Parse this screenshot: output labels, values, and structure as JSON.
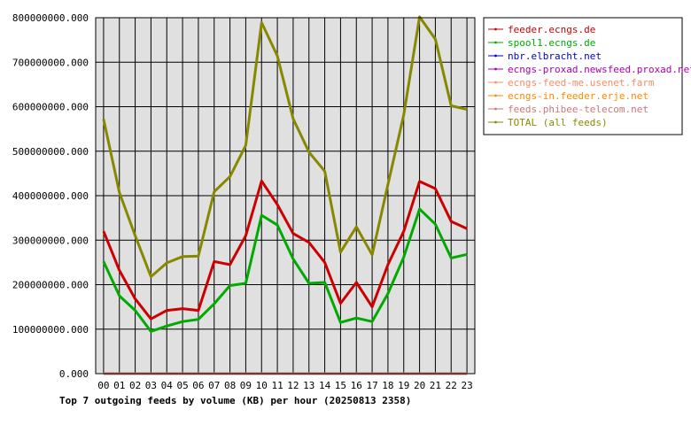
{
  "chart_data": {
    "type": "line",
    "title": "Top 7 outgoing feeds by volume (KB) per hour (20250813 2358)",
    "categories": [
      "00",
      "01",
      "02",
      "03",
      "04",
      "05",
      "06",
      "07",
      "08",
      "09",
      "10",
      "11",
      "12",
      "13",
      "14",
      "15",
      "16",
      "17",
      "18",
      "19",
      "20",
      "21",
      "22",
      "23"
    ],
    "ylim": [
      0,
      800000000
    ],
    "ytick_values": [
      0,
      100000000,
      200000000,
      300000000,
      400000000,
      500000000,
      600000000,
      700000000,
      800000000
    ],
    "ytick_labels": [
      "0.000",
      "100000000.000",
      "200000000.000",
      "300000000.000",
      "400000000.000",
      "500000000.000",
      "600000000.000",
      "700000000.000",
      "800000000.000"
    ],
    "grid": true,
    "legend_position": "right",
    "plot_background": "#e0e0e0",
    "series": [
      {
        "name": "feeder.ecngs.de",
        "color": "#cc0000",
        "values": [
          320000000,
          232000000,
          168000000,
          123000000,
          142000000,
          146000000,
          142000000,
          252000000,
          245000000,
          310000000,
          433000000,
          380000000,
          315000000,
          295000000,
          250000000,
          158000000,
          205000000,
          150000000,
          245000000,
          320000000,
          432000000,
          416000000,
          342000000,
          326000000
        ]
      },
      {
        "name": "spool1.ecngs.de",
        "color": "#00aa00",
        "values": [
          252000000,
          175000000,
          142000000,
          95000000,
          107000000,
          117000000,
          122000000,
          157000000,
          198000000,
          203000000,
          356000000,
          334000000,
          258000000,
          203000000,
          205000000,
          115000000,
          125000000,
          117000000,
          180000000,
          262000000,
          370000000,
          336000000,
          260000000,
          268000000
        ]
      },
      {
        "name": "nbr.elbracht.net",
        "color": "#0000cc",
        "values": [
          0,
          0,
          0,
          0,
          0,
          0,
          0,
          0,
          0,
          0,
          0,
          0,
          0,
          0,
          0,
          0,
          0,
          0,
          0,
          0,
          0,
          0,
          0,
          0
        ]
      },
      {
        "name": "ecngs-proxad.newsfeed.proxad.net",
        "color": "#aa00aa",
        "values": [
          0,
          0,
          0,
          0,
          0,
          0,
          0,
          0,
          0,
          0,
          0,
          0,
          0,
          0,
          0,
          0,
          0,
          0,
          0,
          0,
          0,
          0,
          0,
          0
        ]
      },
      {
        "name": "ecngs-feed-me.usenet.farm",
        "color": "#ff8866",
        "values": [
          0,
          0,
          0,
          0,
          0,
          0,
          0,
          0,
          0,
          0,
          0,
          0,
          0,
          0,
          0,
          0,
          0,
          0,
          0,
          0,
          0,
          0,
          0,
          0
        ]
      },
      {
        "name": "ecngs-in.feeder.erje.net",
        "color": "#ff8800",
        "values": [
          0,
          0,
          0,
          0,
          0,
          0,
          0,
          0,
          0,
          0,
          0,
          0,
          0,
          0,
          0,
          0,
          0,
          0,
          0,
          0,
          0,
          0,
          0,
          0
        ]
      },
      {
        "name": "feeds.phibee-telecom.net",
        "color": "#cc7777",
        "values": [
          0,
          0,
          0,
          0,
          0,
          0,
          0,
          0,
          0,
          0,
          0,
          0,
          0,
          0,
          0,
          0,
          0,
          0,
          0,
          0,
          0,
          0,
          0,
          0
        ]
      },
      {
        "name": "TOTAL (all feeds)",
        "color": "#888800",
        "values": [
          572000000,
          407000000,
          310000000,
          218000000,
          249000000,
          263000000,
          264000000,
          409000000,
          443000000,
          513000000,
          789000000,
          714000000,
          573000000,
          498000000,
          455000000,
          273000000,
          330000000,
          267000000,
          425000000,
          582000000,
          802000000,
          752000000,
          602000000,
          594000000
        ]
      }
    ]
  }
}
